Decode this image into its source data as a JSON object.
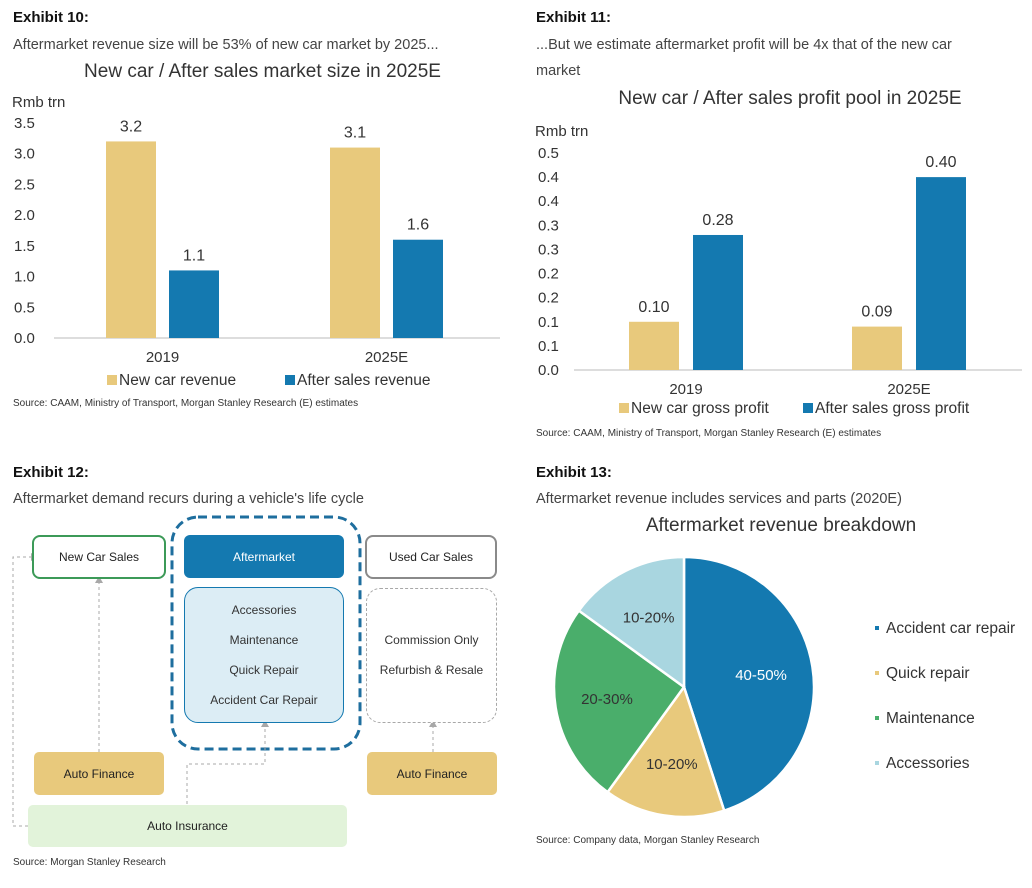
{
  "exhibit10": {
    "label": "Exhibit 10:",
    "subtitle": "Aftermarket revenue size will be 53% of new car market by 2025...",
    "source": "Source: CAAM, Ministry of Transport, Morgan Stanley Research (E) estimates"
  },
  "exhibit11": {
    "label": "Exhibit 11:",
    "subtitle_line1": "...But we estimate aftermarket profit will be 4x that of the new car",
    "subtitle_line2": "market",
    "source": "Source: CAAM, Ministry of Transport, Morgan Stanley Research (E) estimates"
  },
  "exhibit12": {
    "label": "Exhibit 12:",
    "subtitle": "Aftermarket demand recurs during a vehicle's life cycle",
    "source": "Source: Morgan Stanley Research",
    "diagram": {
      "new_car_sales": "New Car Sales",
      "aftermarket": "Aftermarket",
      "used_car_sales": "Used Car Sales",
      "aftermarket_items": [
        "Accessories",
        "Maintenance",
        "Quick Repair",
        "Accident Car Repair"
      ],
      "used_items": [
        "Commission Only",
        "Refurbish & Resale"
      ],
      "auto_finance_left": "Auto Finance",
      "auto_finance_right": "Auto Finance",
      "auto_insurance": "Auto Insurance"
    }
  },
  "exhibit13": {
    "label": "Exhibit 13:",
    "subtitle": "Aftermarket revenue includes services and parts (2020E)",
    "source": "Source: Company data, Morgan Stanley Research"
  },
  "colors": {
    "gold": "#e8c97c",
    "blue": "#1479b0",
    "green": "#4aae6b",
    "lightblue": "#a9d6e0",
    "darkgreen_border": "#3c9a58",
    "finance": "#e8c97c",
    "insurance": "#e2f3da",
    "aftermarket_fill": "#dcedf5"
  },
  "chart_data": [
    {
      "id": "exhibit10",
      "type": "bar",
      "title": "New car / After sales market size in 2025E",
      "ylabel": "Rmb trn",
      "categories": [
        "2019",
        "2025E"
      ],
      "ylim": [
        0,
        3.5
      ],
      "yticks": [
        "3.5",
        "3.0",
        "2.5",
        "2.0",
        "1.5",
        "1.0",
        "0.5",
        "0.0"
      ],
      "series": [
        {
          "name": "New car revenue",
          "values": [
            3.2,
            3.1
          ],
          "labels": [
            "3.2",
            "3.1"
          ]
        },
        {
          "name": "After sales revenue",
          "values": [
            1.1,
            1.6
          ],
          "labels": [
            "1.1",
            "1.6"
          ]
        }
      ],
      "legend": "bottom"
    },
    {
      "id": "exhibit11",
      "type": "bar",
      "title": "New car / After sales profit pool in 2025E",
      "ylabel": "Rmb trn",
      "categories": [
        "2019",
        "2025E"
      ],
      "ylim": [
        0,
        0.45
      ],
      "yticks": [
        "0.5",
        "0.4",
        "0.4",
        "0.3",
        "0.3",
        "0.2",
        "0.2",
        "0.1",
        "0.1",
        "0.0"
      ],
      "series": [
        {
          "name": "New car gross profit",
          "values": [
            0.1,
            0.09
          ],
          "labels": [
            "0.10",
            "0.09"
          ]
        },
        {
          "name": "After sales gross profit",
          "values": [
            0.28,
            0.4
          ],
          "labels": [
            "0.28",
            "0.40"
          ]
        }
      ],
      "legend": "bottom"
    },
    {
      "id": "exhibit13",
      "type": "pie",
      "title": "Aftermarket revenue breakdown",
      "slices": [
        {
          "name": "Accident car repair",
          "value": 45,
          "label": "40-50%"
        },
        {
          "name": "Quick repair",
          "value": 15,
          "label": "10-20%"
        },
        {
          "name": "Maintenance",
          "value": 25,
          "label": "20-30%"
        },
        {
          "name": "Accessories",
          "value": 15,
          "label": "10-20%"
        }
      ],
      "legend": "right"
    }
  ]
}
